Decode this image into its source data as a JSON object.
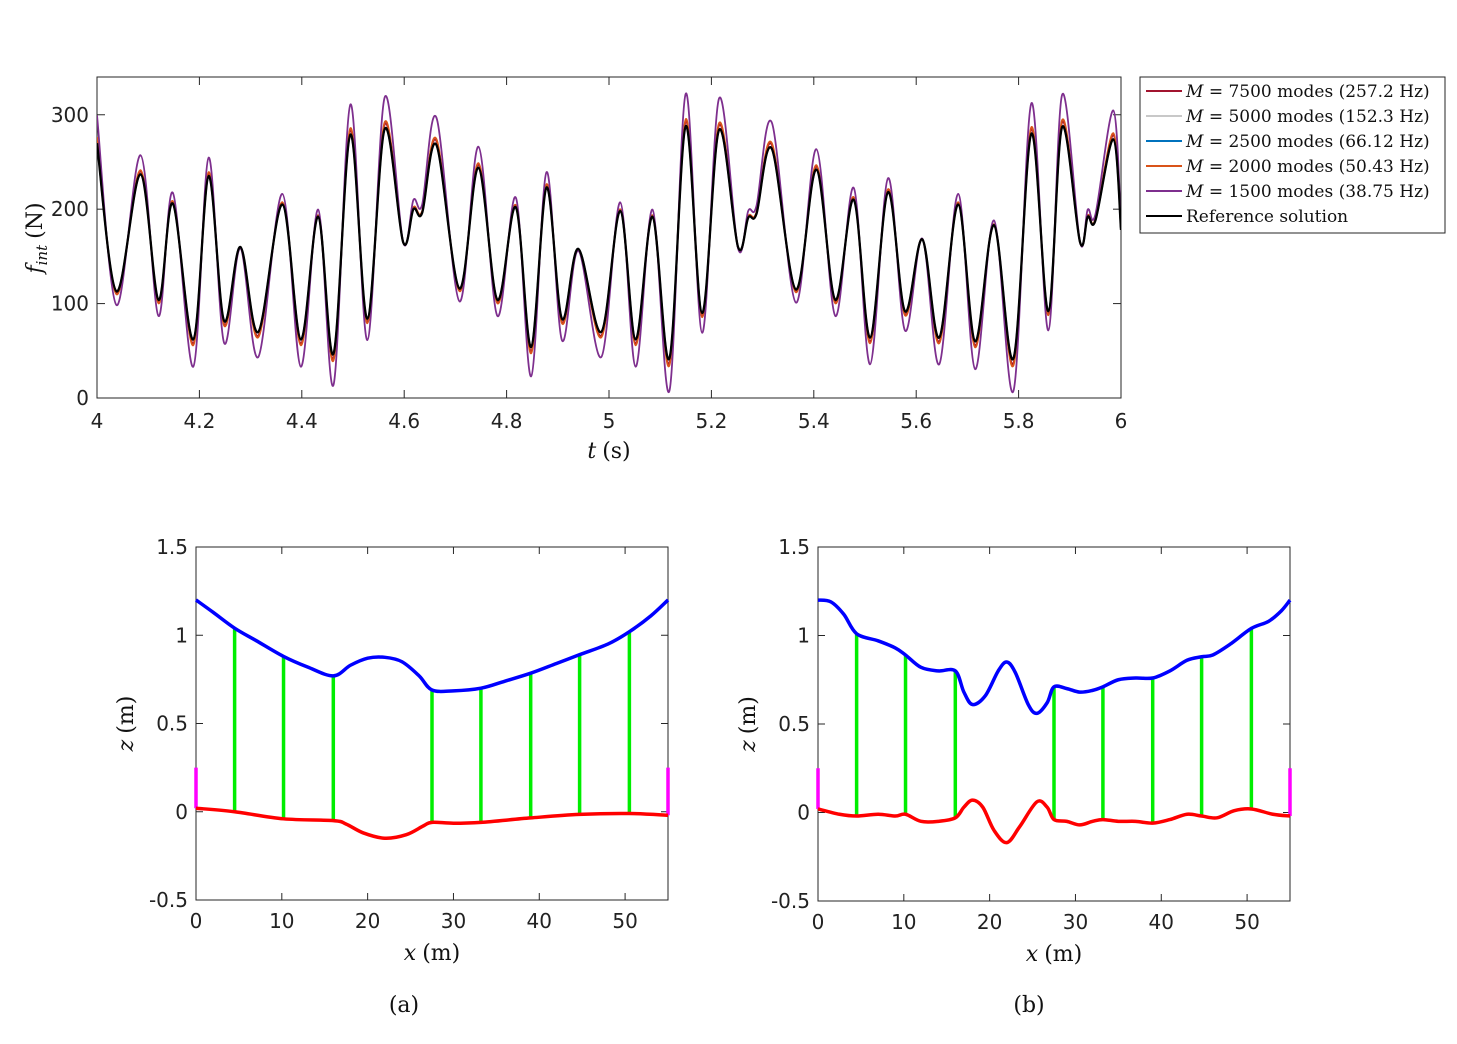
{
  "chart_data": [
    {
      "type": "line",
      "ylabel_math": "f",
      "ylabel_sub": "int",
      "ylabel_unit": "(N)",
      "xlabel_math": "t",
      "xlabel_unit": "(s)",
      "xlim": [
        4,
        6
      ],
      "ylim": [
        0,
        340
      ],
      "xticks": [
        "4",
        "4.2",
        "4.4",
        "4.6",
        "4.8",
        "5",
        "5.2",
        "5.4",
        "5.6",
        "5.8",
        "6"
      ],
      "yticks": [
        "0",
        "100",
        "200",
        "300"
      ],
      "grid": false,
      "legend_position": "outside-right",
      "reference_peaks": [
        [
          4.0,
          270
        ],
        [
          4.038,
          113
        ],
        [
          4.085,
          237
        ],
        [
          4.12,
          104
        ],
        [
          4.148,
          206
        ],
        [
          4.188,
          62
        ],
        [
          4.218,
          235
        ],
        [
          4.248,
          82
        ],
        [
          4.28,
          160
        ],
        [
          4.315,
          70
        ],
        [
          4.362,
          205
        ],
        [
          4.398,
          62
        ],
        [
          4.432,
          192
        ],
        [
          4.462,
          47
        ],
        [
          4.495,
          279
        ],
        [
          4.528,
          84
        ],
        [
          4.562,
          285
        ],
        [
          4.598,
          165
        ],
        [
          4.618,
          200
        ],
        [
          4.635,
          196
        ],
        [
          4.663,
          268
        ],
        [
          4.708,
          116
        ],
        [
          4.745,
          244
        ],
        [
          4.782,
          104
        ],
        [
          4.818,
          202
        ],
        [
          4.848,
          54
        ],
        [
          4.878,
          223
        ],
        [
          4.908,
          84
        ],
        [
          4.94,
          158
        ],
        [
          4.985,
          70
        ],
        [
          5.022,
          198
        ],
        [
          5.052,
          62
        ],
        [
          5.085,
          192
        ],
        [
          5.118,
          42
        ],
        [
          5.15,
          288
        ],
        [
          5.182,
          90
        ],
        [
          5.215,
          284
        ],
        [
          5.252,
          160
        ],
        [
          5.272,
          191
        ],
        [
          5.288,
          195
        ],
        [
          5.318,
          264
        ],
        [
          5.365,
          115
        ],
        [
          5.405,
          242
        ],
        [
          5.442,
          104
        ],
        [
          5.478,
          210
        ],
        [
          5.51,
          64
        ],
        [
          5.545,
          218
        ],
        [
          5.578,
          92
        ],
        [
          5.612,
          168
        ],
        [
          5.645,
          64
        ],
        [
          5.682,
          205
        ],
        [
          5.715,
          60
        ],
        [
          5.752,
          183
        ],
        [
          5.79,
          42
        ],
        [
          5.825,
          280
        ],
        [
          5.858,
          92
        ],
        [
          5.885,
          287
        ],
        [
          5.92,
          165
        ],
        [
          5.935,
          192
        ],
        [
          5.95,
          188
        ],
        [
          5.985,
          274
        ],
        [
          6.0,
          178
        ]
      ],
      "series": [
        {
          "prefix": "M",
          "label": " = 7500 modes (257.2 Hz)",
          "color": "#a2142f",
          "amp": 1.04
        },
        {
          "prefix": "M",
          "label": " = 5000 modes (152.3 Hz)",
          "color": "#c8c8c8",
          "amp": 1.0
        },
        {
          "prefix": "M",
          "label": " = 2500 modes (66.12 Hz)",
          "color": "#0072bd",
          "amp": 1.0
        },
        {
          "prefix": "M",
          "label": " = 2000 modes (50.43 Hz)",
          "color": "#d95319",
          "amp": 1.06
        },
        {
          "prefix": "M",
          "label": " = 1500 modes (38.75 Hz)",
          "color": "#7e2f8e",
          "amp": 1.28
        },
        {
          "prefix": "",
          "label": "Reference solution",
          "color": "#000000",
          "amp": 1.0
        }
      ]
    },
    {
      "type": "line",
      "caption": "(a)",
      "xlabel_math": "x",
      "xlabel_unit": "(m)",
      "ylabel_math": "z",
      "ylabel_unit": "(m)",
      "xlim": [
        0,
        55
      ],
      "ylim": [
        -0.5,
        1.5
      ],
      "xticks": [
        "0",
        "10",
        "20",
        "30",
        "40",
        "50"
      ],
      "yticks": [
        "-0.5",
        "0",
        "0.5",
        "1",
        "1.5"
      ],
      "upper_curve": {
        "color": "#0000ff",
        "points": [
          [
            0,
            1.2
          ],
          [
            2,
            1.13
          ],
          [
            4.5,
            1.04
          ],
          [
            7,
            0.97
          ],
          [
            10.2,
            0.88
          ],
          [
            13,
            0.82
          ],
          [
            16,
            0.77
          ],
          [
            18,
            0.83
          ],
          [
            20,
            0.87
          ],
          [
            22,
            0.875
          ],
          [
            24,
            0.85
          ],
          [
            26,
            0.77
          ],
          [
            27.5,
            0.69
          ],
          [
            30,
            0.685
          ],
          [
            33.2,
            0.7
          ],
          [
            36,
            0.74
          ],
          [
            39,
            0.785
          ],
          [
            42,
            0.84
          ],
          [
            44.7,
            0.89
          ],
          [
            48,
            0.95
          ],
          [
            50.5,
            1.02
          ],
          [
            53,
            1.11
          ],
          [
            55,
            1.2
          ]
        ]
      },
      "lower_curve": {
        "color": "#ff0000",
        "points": [
          [
            0,
            0.02
          ],
          [
            4.5,
            0.0
          ],
          [
            10.2,
            -0.04
          ],
          [
            16,
            -0.05
          ],
          [
            17.5,
            -0.07
          ],
          [
            19.5,
            -0.12
          ],
          [
            22,
            -0.15
          ],
          [
            24.5,
            -0.13
          ],
          [
            26.5,
            -0.08
          ],
          [
            27.5,
            -0.06
          ],
          [
            30,
            -0.065
          ],
          [
            33.2,
            -0.06
          ],
          [
            39,
            -0.035
          ],
          [
            44.7,
            -0.015
          ],
          [
            50.5,
            -0.01
          ],
          [
            55,
            -0.02
          ]
        ]
      },
      "hangers": {
        "color": "#00ee00",
        "x": [
          4.5,
          10.2,
          16,
          27.5,
          33.2,
          39,
          44.7,
          50.5
        ]
      },
      "towers": {
        "color": "#ff00ff",
        "x": [
          0,
          55
        ],
        "top": 0.25
      }
    },
    {
      "type": "line",
      "caption": "(b)",
      "xlabel_math": "x",
      "xlabel_unit": "(m)",
      "ylabel_math": "z",
      "ylabel_unit": "(m)",
      "xlim": [
        0,
        55
      ],
      "ylim": [
        -0.5,
        1.5
      ],
      "xticks": [
        "0",
        "10",
        "20",
        "30",
        "40",
        "50"
      ],
      "yticks": [
        "-0.5",
        "0",
        "0.5",
        "1",
        "1.5"
      ],
      "upper_curve": {
        "color": "#0000ff",
        "points": [
          [
            0,
            1.2
          ],
          [
            1.5,
            1.19
          ],
          [
            3,
            1.12
          ],
          [
            4.5,
            1.01
          ],
          [
            7,
            0.97
          ],
          [
            9,
            0.93
          ],
          [
            10.2,
            0.89
          ],
          [
            12,
            0.82
          ],
          [
            14,
            0.8
          ],
          [
            16,
            0.8
          ],
          [
            17,
            0.68
          ],
          [
            18,
            0.61
          ],
          [
            19.5,
            0.66
          ],
          [
            21,
            0.8
          ],
          [
            22,
            0.85
          ],
          [
            23,
            0.79
          ],
          [
            24.5,
            0.61
          ],
          [
            25.5,
            0.56
          ],
          [
            26.7,
            0.62
          ],
          [
            27.5,
            0.71
          ],
          [
            29,
            0.7
          ],
          [
            30.5,
            0.68
          ],
          [
            32,
            0.69
          ],
          [
            33.2,
            0.71
          ],
          [
            35,
            0.75
          ],
          [
            37,
            0.76
          ],
          [
            39,
            0.76
          ],
          [
            41,
            0.8
          ],
          [
            43,
            0.86
          ],
          [
            44.7,
            0.88
          ],
          [
            46,
            0.89
          ],
          [
            48,
            0.95
          ],
          [
            50.5,
            1.04
          ],
          [
            52.5,
            1.08
          ],
          [
            54,
            1.14
          ],
          [
            55,
            1.2
          ]
        ]
      },
      "lower_curve": {
        "color": "#ff0000",
        "points": [
          [
            0,
            0.02
          ],
          [
            2.5,
            -0.01
          ],
          [
            4.5,
            -0.02
          ],
          [
            7,
            -0.01
          ],
          [
            9,
            -0.02
          ],
          [
            10.2,
            -0.01
          ],
          [
            12,
            -0.05
          ],
          [
            14,
            -0.05
          ],
          [
            16,
            -0.03
          ],
          [
            17,
            0.03
          ],
          [
            18,
            0.07
          ],
          [
            19.2,
            0.03
          ],
          [
            20.5,
            -0.1
          ],
          [
            22,
            -0.17
          ],
          [
            23.5,
            -0.08
          ],
          [
            25.5,
            0.06
          ],
          [
            26.7,
            0.03
          ],
          [
            27.5,
            -0.04
          ],
          [
            29,
            -0.05
          ],
          [
            30.5,
            -0.07
          ],
          [
            32,
            -0.05
          ],
          [
            33.2,
            -0.04
          ],
          [
            35,
            -0.05
          ],
          [
            37,
            -0.05
          ],
          [
            39,
            -0.06
          ],
          [
            41,
            -0.04
          ],
          [
            43,
            -0.01
          ],
          [
            44.7,
            -0.02
          ],
          [
            46.5,
            -0.03
          ],
          [
            48.5,
            0.01
          ],
          [
            50.5,
            0.02
          ],
          [
            53,
            -0.01
          ],
          [
            55,
            -0.02
          ]
        ]
      },
      "hangers": {
        "color": "#00ee00",
        "x": [
          4.5,
          10.2,
          16,
          27.5,
          33.2,
          39,
          44.7,
          50.5
        ]
      },
      "towers": {
        "color": "#ff00ff",
        "x": [
          0,
          55
        ],
        "top": 0.25
      }
    }
  ]
}
